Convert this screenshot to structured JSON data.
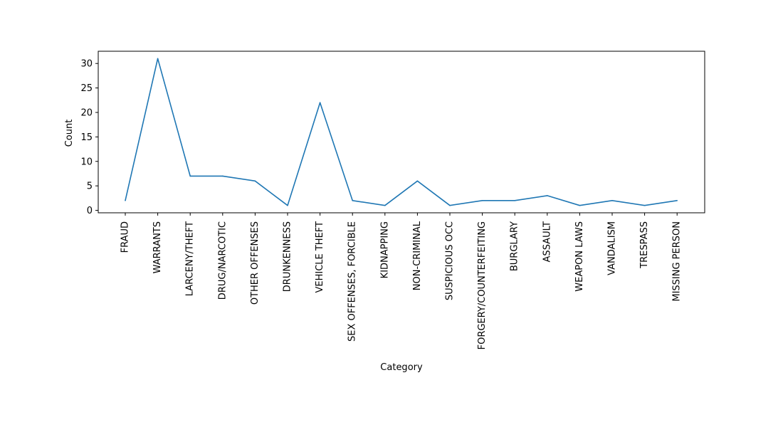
{
  "chart_data": {
    "type": "line",
    "title": "",
    "xlabel": "Category",
    "ylabel": "Count",
    "ylim": [
      -0.5,
      32.5
    ],
    "yticks": [
      0,
      5,
      10,
      15,
      20,
      25,
      30
    ],
    "grid": false,
    "categories": [
      "FRAUD",
      "WARRANTS",
      "LARCENY/THEFT",
      "DRUG/NARCOTIC",
      "OTHER OFFENSES",
      "DRUNKENNESS",
      "VEHICLE THEFT",
      "SEX OFFENSES, FORCIBLE",
      "KIDNAPPING",
      "NON-CRIMINAL",
      "SUSPICIOUS OCC",
      "FORGERY/COUNTERFEITING",
      "BURGLARY",
      "ASSAULT",
      "WEAPON LAWS",
      "VANDALISM",
      "TRESPASS",
      "MISSING PERSON"
    ],
    "series": [
      {
        "name": "Count",
        "color": "#1f77b4",
        "values": [
          2,
          31,
          7,
          7,
          6,
          1,
          22,
          2,
          1,
          6,
          1,
          2,
          2,
          3,
          1,
          2,
          1,
          2
        ]
      }
    ]
  }
}
